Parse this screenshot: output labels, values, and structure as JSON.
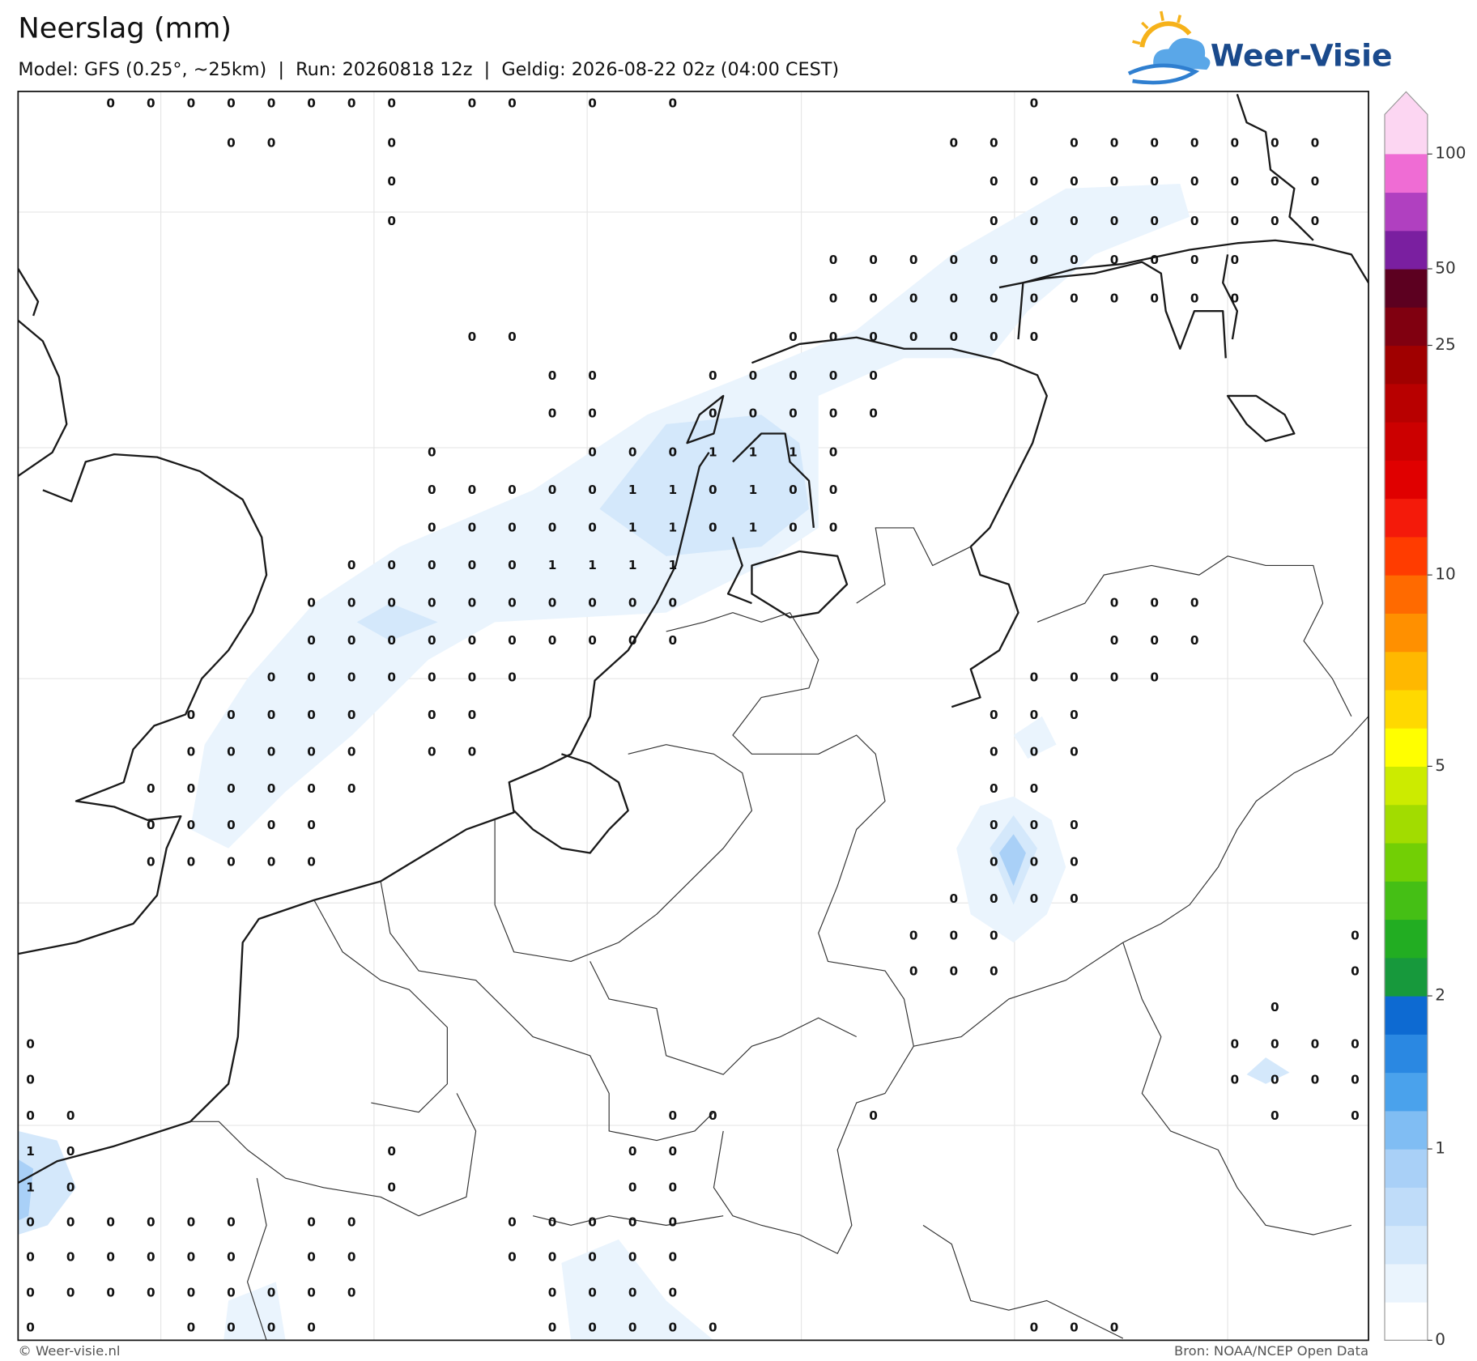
{
  "header": {
    "title": "Neerslag (mm)",
    "subtitle": "Model: GFS (0.25°, ~25km)  |  Run: 20260818 12z  |  Geldig: 2026-08-22 02z (04:00 CEST)",
    "logo": "Weer-Visie"
  },
  "map": {
    "grid_values": [
      [
        null,
        null,
        0,
        0,
        0,
        0,
        0,
        0,
        0,
        0,
        null,
        0,
        0,
        null,
        0,
        null,
        0,
        null,
        null,
        null,
        null,
        null,
        null,
        null,
        null,
        0,
        null,
        null,
        null,
        null,
        null,
        null,
        null,
        null
      ],
      [
        null,
        null,
        null,
        null,
        null,
        0,
        0,
        null,
        null,
        0,
        null,
        null,
        null,
        null,
        null,
        null,
        null,
        null,
        null,
        null,
        null,
        null,
        null,
        0,
        0,
        null,
        0,
        0,
        0,
        0,
        0,
        0,
        0,
        null
      ],
      [
        null,
        null,
        null,
        null,
        null,
        null,
        null,
        null,
        null,
        0,
        null,
        null,
        null,
        null,
        null,
        null,
        null,
        null,
        null,
        null,
        null,
        null,
        null,
        null,
        0,
        0,
        0,
        0,
        0,
        0,
        0,
        0,
        0,
        null
      ],
      [
        null,
        null,
        null,
        null,
        null,
        null,
        null,
        null,
        null,
        0,
        null,
        null,
        null,
        null,
        null,
        null,
        null,
        null,
        null,
        null,
        null,
        null,
        null,
        null,
        0,
        0,
        0,
        0,
        0,
        0,
        0,
        0,
        0,
        null
      ],
      [
        null,
        null,
        null,
        null,
        null,
        null,
        null,
        null,
        null,
        null,
        null,
        null,
        null,
        null,
        null,
        null,
        null,
        null,
        null,
        null,
        0,
        0,
        0,
        0,
        0,
        0,
        0,
        0,
        0,
        0,
        0,
        null,
        null,
        null
      ],
      [
        null,
        null,
        null,
        null,
        null,
        null,
        null,
        null,
        null,
        null,
        null,
        null,
        null,
        null,
        null,
        null,
        null,
        null,
        null,
        null,
        0,
        0,
        0,
        0,
        0,
        0,
        0,
        0,
        0,
        0,
        0,
        null,
        null,
        null
      ],
      [
        null,
        null,
        null,
        null,
        null,
        null,
        null,
        null,
        null,
        null,
        null,
        0,
        0,
        null,
        null,
        null,
        null,
        null,
        null,
        0,
        0,
        0,
        0,
        0,
        0,
        0,
        null,
        null,
        null,
        null,
        null,
        null,
        null,
        null
      ],
      [
        null,
        null,
        null,
        null,
        null,
        null,
        null,
        null,
        null,
        null,
        null,
        null,
        null,
        0,
        0,
        null,
        null,
        0,
        0,
        0,
        0,
        0,
        null,
        null,
        null,
        null,
        null,
        null,
        null,
        null,
        null,
        null,
        null,
        null
      ],
      [
        null,
        null,
        null,
        null,
        null,
        null,
        null,
        null,
        null,
        null,
        null,
        null,
        null,
        0,
        0,
        null,
        null,
        0,
        0,
        0,
        0,
        0,
        null,
        null,
        null,
        null,
        null,
        null,
        null,
        null,
        null,
        null,
        null,
        null
      ],
      [
        null,
        null,
        null,
        null,
        null,
        null,
        null,
        null,
        null,
        null,
        0,
        null,
        null,
        null,
        0,
        0,
        0,
        1,
        1,
        1,
        0,
        null,
        null,
        null,
        null,
        null,
        null,
        null,
        null,
        null,
        null,
        null,
        null,
        null
      ],
      [
        null,
        null,
        null,
        null,
        null,
        null,
        null,
        null,
        null,
        null,
        0,
        0,
        0,
        0,
        0,
        1,
        1,
        0,
        1,
        0,
        0,
        null,
        null,
        null,
        null,
        null,
        null,
        null,
        null,
        null,
        null,
        null,
        null,
        null
      ],
      [
        null,
        null,
        null,
        null,
        null,
        null,
        null,
        null,
        null,
        null,
        0,
        0,
        0,
        0,
        0,
        1,
        1,
        0,
        1,
        0,
        0,
        null,
        null,
        null,
        null,
        null,
        null,
        null,
        null,
        null,
        null,
        null,
        null,
        null
      ],
      [
        null,
        null,
        null,
        null,
        null,
        null,
        null,
        null,
        0,
        0,
        0,
        0,
        0,
        1,
        1,
        1,
        1,
        null,
        null,
        null,
        null,
        null,
        null,
        null,
        null,
        null,
        null,
        null,
        null,
        null,
        null,
        null,
        null,
        null
      ],
      [
        null,
        null,
        null,
        null,
        null,
        null,
        null,
        0,
        0,
        0,
        0,
        0,
        0,
        0,
        0,
        0,
        0,
        null,
        null,
        null,
        null,
        null,
        null,
        null,
        null,
        null,
        null,
        0,
        0,
        0,
        null,
        null,
        null,
        null
      ],
      [
        null,
        null,
        null,
        null,
        null,
        null,
        null,
        0,
        0,
        0,
        0,
        0,
        0,
        0,
        0,
        0,
        0,
        null,
        null,
        null,
        null,
        null,
        null,
        null,
        null,
        null,
        null,
        0,
        0,
        0,
        null,
        null,
        null,
        null
      ],
      [
        null,
        null,
        null,
        null,
        null,
        null,
        0,
        0,
        0,
        0,
        0,
        0,
        0,
        null,
        null,
        null,
        null,
        null,
        null,
        null,
        null,
        null,
        null,
        null,
        null,
        0,
        0,
        0,
        0,
        null,
        null,
        null,
        null,
        null
      ],
      [
        null,
        null,
        null,
        null,
        0,
        0,
        0,
        0,
        0,
        null,
        0,
        0,
        null,
        null,
        null,
        null,
        null,
        null,
        null,
        null,
        null,
        null,
        null,
        null,
        0,
        0,
        0,
        null,
        null,
        null,
        null,
        null,
        null,
        null
      ],
      [
        null,
        null,
        null,
        null,
        0,
        0,
        0,
        0,
        0,
        null,
        0,
        0,
        null,
        null,
        null,
        null,
        null,
        null,
        null,
        null,
        null,
        null,
        null,
        null,
        0,
        0,
        0,
        null,
        null,
        null,
        null,
        null,
        null,
        null
      ],
      [
        null,
        null,
        null,
        0,
        0,
        0,
        0,
        0,
        0,
        null,
        null,
        null,
        null,
        null,
        null,
        null,
        null,
        null,
        null,
        null,
        null,
        null,
        null,
        null,
        0,
        0,
        null,
        null,
        null,
        null,
        null,
        null,
        null,
        null
      ],
      [
        null,
        null,
        null,
        0,
        0,
        0,
        0,
        0,
        null,
        null,
        null,
        null,
        null,
        null,
        null,
        null,
        null,
        null,
        null,
        null,
        null,
        null,
        null,
        null,
        0,
        0,
        0,
        null,
        null,
        null,
        null,
        null,
        null,
        null
      ],
      [
        null,
        null,
        null,
        0,
        0,
        0,
        0,
        0,
        null,
        null,
        null,
        null,
        null,
        null,
        null,
        null,
        null,
        null,
        null,
        null,
        null,
        null,
        null,
        null,
        0,
        0,
        0,
        null,
        null,
        null,
        null,
        null,
        null,
        null
      ],
      [
        null,
        null,
        null,
        null,
        null,
        null,
        null,
        null,
        null,
        null,
        null,
        null,
        null,
        null,
        null,
        null,
        null,
        null,
        null,
        null,
        null,
        null,
        null,
        0,
        0,
        0,
        0,
        null,
        null,
        null,
        null,
        null,
        null,
        null
      ],
      [
        null,
        null,
        null,
        null,
        null,
        null,
        null,
        null,
        null,
        null,
        null,
        null,
        null,
        null,
        null,
        null,
        null,
        null,
        null,
        null,
        null,
        null,
        0,
        0,
        0,
        null,
        null,
        null,
        null,
        null,
        null,
        null,
        null,
        0
      ],
      [
        null,
        null,
        null,
        null,
        null,
        null,
        null,
        null,
        null,
        null,
        null,
        null,
        null,
        null,
        null,
        null,
        null,
        null,
        null,
        null,
        null,
        null,
        0,
        0,
        0,
        null,
        null,
        null,
        null,
        null,
        null,
        null,
        null,
        0
      ],
      [
        null,
        null,
        null,
        null,
        null,
        null,
        null,
        null,
        null,
        null,
        null,
        null,
        null,
        null,
        null,
        null,
        null,
        null,
        null,
        null,
        null,
        null,
        null,
        null,
        null,
        null,
        null,
        null,
        null,
        null,
        null,
        0,
        null,
        null
      ],
      [
        0,
        null,
        null,
        null,
        null,
        null,
        null,
        null,
        null,
        null,
        null,
        null,
        null,
        null,
        null,
        null,
        null,
        null,
        null,
        null,
        null,
        null,
        null,
        null,
        null,
        null,
        null,
        null,
        null,
        null,
        0,
        0,
        0,
        0
      ],
      [
        0,
        null,
        null,
        null,
        null,
        null,
        null,
        null,
        null,
        null,
        null,
        null,
        null,
        null,
        null,
        null,
        null,
        null,
        null,
        null,
        null,
        null,
        null,
        null,
        null,
        null,
        null,
        null,
        null,
        null,
        0,
        0,
        0,
        0
      ],
      [
        0,
        0,
        null,
        null,
        null,
        null,
        null,
        null,
        null,
        null,
        null,
        null,
        null,
        null,
        null,
        null,
        0,
        0,
        null,
        null,
        null,
        0,
        null,
        null,
        null,
        null,
        null,
        null,
        null,
        null,
        null,
        0,
        null,
        0
      ],
      [
        1,
        0,
        null,
        null,
        null,
        null,
        null,
        null,
        null,
        0,
        null,
        null,
        null,
        null,
        null,
        0,
        0,
        null,
        null,
        null,
        null,
        null,
        null,
        null,
        null,
        null,
        null,
        null,
        null,
        null,
        null,
        null,
        null,
        null
      ],
      [
        1,
        0,
        null,
        null,
        null,
        null,
        null,
        null,
        null,
        0,
        null,
        null,
        null,
        null,
        null,
        0,
        0,
        null,
        null,
        null,
        null,
        null,
        null,
        null,
        null,
        null,
        null,
        null,
        null,
        null,
        null,
        null,
        null,
        null
      ],
      [
        0,
        0,
        0,
        0,
        0,
        0,
        null,
        0,
        0,
        null,
        null,
        null,
        0,
        0,
        0,
        0,
        0,
        null,
        null,
        null,
        null,
        null,
        null,
        null,
        null,
        null,
        null,
        null,
        null,
        null,
        null,
        null,
        null,
        null
      ],
      [
        0,
        0,
        0,
        0,
        0,
        0,
        null,
        0,
        0,
        null,
        null,
        null,
        0,
        0,
        0,
        0,
        0,
        null,
        null,
        null,
        null,
        null,
        null,
        null,
        null,
        null,
        null,
        null,
        null,
        null,
        null,
        null,
        null,
        null
      ],
      [
        0,
        0,
        0,
        0,
        0,
        0,
        0,
        0,
        0,
        null,
        null,
        null,
        null,
        0,
        0,
        0,
        0,
        null,
        null,
        null,
        null,
        null,
        null,
        null,
        null,
        null,
        null,
        null,
        null,
        null,
        null,
        null,
        null,
        null
      ],
      [
        0,
        null,
        null,
        null,
        0,
        0,
        0,
        0,
        null,
        null,
        null,
        null,
        null,
        0,
        0,
        0,
        0,
        0,
        null,
        null,
        null,
        null,
        null,
        null,
        null,
        0,
        0,
        0,
        null,
        null,
        null,
        null,
        null,
        null
      ]
    ],
    "colorbar": {
      "colors": [
        "#ffffff",
        "#eaf4fd",
        "#d4e8fb",
        "#bfdcf9",
        "#a9d0f7",
        "#80bdf3",
        "#4aa2ec",
        "#2a88e2",
        "#0d6ad2",
        "#17993c",
        "#22ad22",
        "#45bf15",
        "#72cf05",
        "#a2dc00",
        "#cceb00",
        "#ffff00",
        "#ffd900",
        "#ffb800",
        "#ff9000",
        "#ff6a00",
        "#ff3c00",
        "#f41a0a",
        "#e00000",
        "#cc0000",
        "#b80000",
        "#a00000",
        "#800010",
        "#5c0020",
        "#7a1fa0",
        "#b040c0",
        "#ef6cd4"
      ],
      "extend_color": "#fcd6f2",
      "ticks": [
        0,
        1,
        2,
        5,
        10,
        25,
        50,
        100
      ]
    }
  },
  "footer": {
    "credit": "© Weer-visie.nl",
    "source": "Bron: NOAA/NCEP Open Data"
  }
}
